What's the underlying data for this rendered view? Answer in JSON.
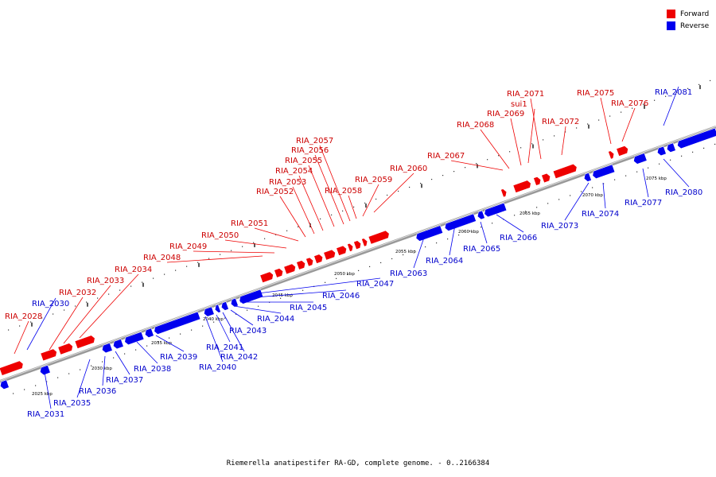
{
  "caption": "Riemerella anatipestifer RA-GD, complete genome. - 0..2166384",
  "legend": {
    "forward_label": "Forward",
    "reverse_label": "Reverse"
  },
  "colors": {
    "forward": "#ee0000",
    "reverse": "#0000ee",
    "forward_text": "#cc0000",
    "reverse_text": "#0000cc",
    "backbone": "#888888"
  },
  "ruler_labels": [
    "2025 kbp",
    "2030 kbp",
    "2035 kbp",
    "2040 kbp",
    "2045 kbp",
    "2050 kbp",
    "2055 kbp",
    "2060 kbp",
    "2065 kbp",
    "2070 kbp",
    "2075 kbp"
  ],
  "forward_genes": [
    "RIA_2028",
    "RIA_2032",
    "RIA_2033",
    "RIA_2034",
    "RIA_2048",
    "RIA_2049",
    "RIA_2050",
    "RIA_2051",
    "RIA_2052",
    "RIA_2053",
    "RIA_2054",
    "RIA_2055",
    "RIA_2056",
    "RIA_2057",
    "RIA_2058",
    "RIA_2059",
    "RIA_2060",
    "RIA_2067",
    "RIA_2068",
    "RIA_2069",
    "sui1",
    "RIA_2071",
    "RIA_2072",
    "RIA_2075",
    "RIA_2076"
  ],
  "reverse_genes": [
    "RIA_2030",
    "RIA_2031",
    "RIA_2035",
    "RIA_2036",
    "RIA_2037",
    "RIA_2038",
    "RIA_2039",
    "RIA_2040",
    "RIA_2041",
    "RIA_2042",
    "RIA_2043",
    "RIA_2044",
    "RIA_2045",
    "RIA_2046",
    "RIA_2047",
    "RIA_2063",
    "RIA_2064",
    "RIA_2065",
    "RIA_2066",
    "RIA_2073",
    "RIA_2074",
    "RIA_2077",
    "RIA_2080",
    "RIA_2081"
  ]
}
